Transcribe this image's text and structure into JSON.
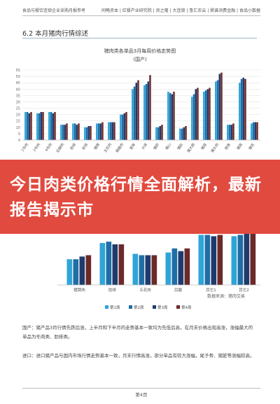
{
  "header": {
    "left": "食品与餐饮连锁企业采购月报参考",
    "right": "同略资本 | 红餐产业研究院 | 良之隆 | 大连锁 | 鲁汇农云 | 粥谱消费金融 | 食品小数据"
  },
  "section_title": "6.2 本月猪肉行情综述",
  "banner_text": "今日肉类价格行情全面解析，最新报告揭示市",
  "chart_data": [
    {
      "type": "bar",
      "title": "猪肉类各单品3月每周价格走势图",
      "subtitle": "(国产)",
      "yticks": [
        0,
        5,
        10,
        15,
        20,
        25,
        30,
        35,
        40,
        45,
        50,
        55
      ],
      "ylim": [
        0,
        55
      ],
      "grid": true,
      "legend": "bottom",
      "categories": [
        "1号肉",
        "2号肉",
        "4号肉",
        "后腿肉",
        "肋排",
        "前排",
        "猪蹄",
        "五花肉",
        "精瘦肉",
        "里脊",
        "大排",
        "猪肝",
        "猪心",
        "猪肚",
        "猪大肠",
        "猪耳",
        "猪头肉",
        "筒骨",
        "猪尾",
        "猪舌"
      ],
      "series": [
        {
          "name": "第1周",
          "values": [
            22,
            21,
            22,
            12,
            13,
            10,
            13,
            14,
            20,
            40,
            43,
            10,
            38,
            9,
            34,
            38,
            46,
            12,
            45,
            13
          ]
        },
        {
          "name": "第2周",
          "values": [
            22,
            21,
            22,
            12,
            13,
            10,
            13,
            14,
            20,
            42,
            44,
            10,
            37,
            9,
            36,
            39,
            47,
            12,
            48,
            14
          ]
        },
        {
          "name": "第3周",
          "values": [
            21,
            22,
            21,
            12,
            12,
            11,
            13,
            14,
            21,
            45,
            46,
            11,
            36,
            10,
            40,
            40,
            52,
            12,
            49,
            14
          ]
        },
        {
          "name": "第4周",
          "values": [
            22,
            22,
            22,
            13,
            13,
            11,
            14,
            14,
            22,
            47,
            51,
            12,
            38,
            11,
            41,
            41,
            53,
            13,
            48,
            14
          ]
        }
      ]
    },
    {
      "type": "bar",
      "title": "",
      "ylim": [
        0,
        45
      ],
      "grid": false,
      "legend": "bottom",
      "categories": [
        "猪蹄肉",
        "肋排",
        "五花肉",
        "后腿",
        "其它1",
        "其它2"
      ],
      "series": [
        {
          "name": "第1周",
          "values": [
            19,
            31,
            23,
            24,
            37,
            36
          ]
        },
        {
          "name": "第2周",
          "values": [
            19,
            32,
            22,
            27,
            37,
            37
          ]
        },
        {
          "name": "第3周",
          "values": [
            21,
            30,
            22,
            25,
            36,
            38
          ]
        },
        {
          "name": "第4周",
          "values": [
            22,
            30,
            22,
            27,
            37,
            40
          ]
        }
      ]
    }
  ],
  "colors": {
    "s1": "#2fa4d8",
    "s2": "#1f6ea6",
    "s3": "#1f3b6e",
    "s4": "#6b2a2a",
    "banner": "#e14a3f"
  },
  "source_note": "数据来源：猪肉交易",
  "paragraph1": "国产：猪产品3月行情先跌后涨，上半月和下半月的走势基本一致均为先低后高，在月末价格出现高涨，涨幅最大的单品为冬肉类、肋排类。",
  "paragraph2": "进口：进口猪产品与国内市场行情走势基本一致，月末行情高涨，部分单品有较大涨幅，尾子骨、猪脏等涨幅较高。",
  "footer": "第4页"
}
